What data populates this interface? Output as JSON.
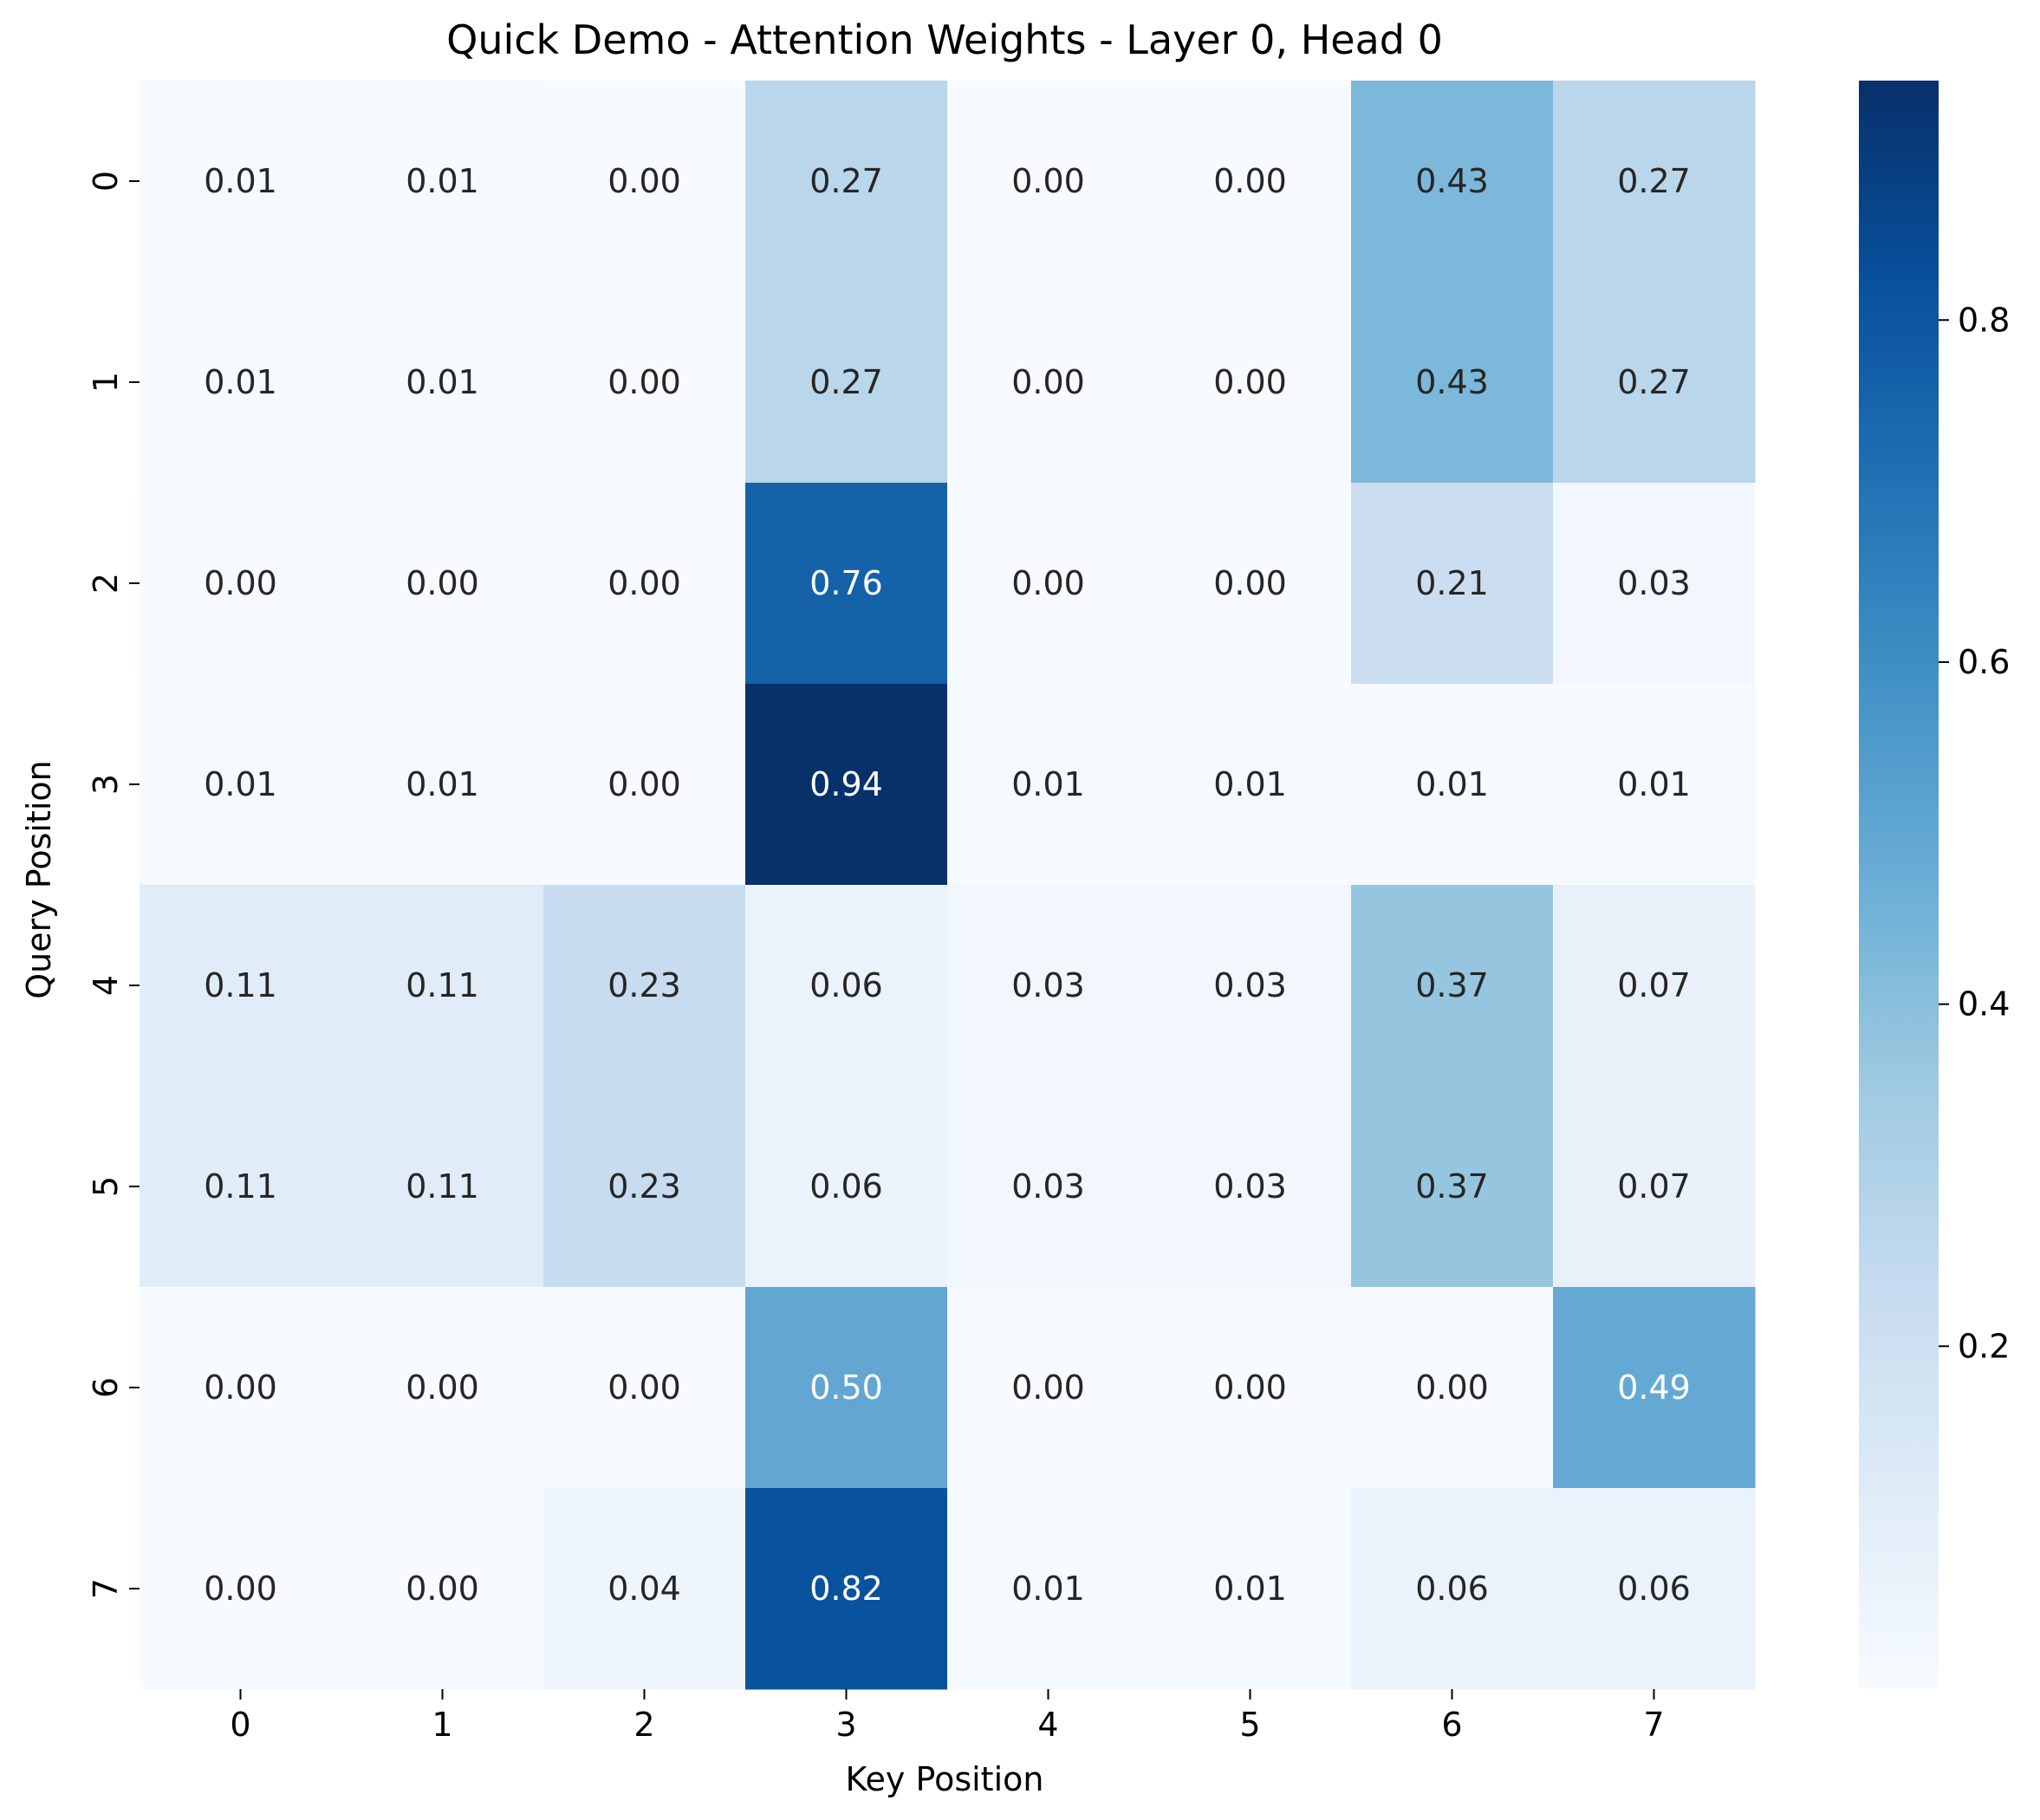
{
  "chart_data": {
    "type": "heatmap",
    "title": "Quick Demo - Attention Weights - Layer 0, Head 0",
    "xlabel": "Key Position",
    "ylabel": "Query Position",
    "x_categories": [
      "0",
      "1",
      "2",
      "3",
      "4",
      "5",
      "6",
      "7"
    ],
    "y_categories": [
      "0",
      "1",
      "2",
      "3",
      "4",
      "5",
      "6",
      "7"
    ],
    "values": [
      [
        0.01,
        0.01,
        0.0,
        0.27,
        0.0,
        0.0,
        0.43,
        0.27
      ],
      [
        0.01,
        0.01,
        0.0,
        0.27,
        0.0,
        0.0,
        0.43,
        0.27
      ],
      [
        0.0,
        0.0,
        0.0,
        0.76,
        0.0,
        0.0,
        0.21,
        0.03
      ],
      [
        0.01,
        0.01,
        0.0,
        0.94,
        0.01,
        0.01,
        0.01,
        0.01
      ],
      [
        0.11,
        0.11,
        0.23,
        0.06,
        0.03,
        0.03,
        0.37,
        0.07
      ],
      [
        0.11,
        0.11,
        0.23,
        0.06,
        0.03,
        0.03,
        0.37,
        0.07
      ],
      [
        0.0,
        0.0,
        0.0,
        0.5,
        0.0,
        0.0,
        0.0,
        0.49
      ],
      [
        0.0,
        0.0,
        0.04,
        0.82,
        0.01,
        0.01,
        0.06,
        0.06
      ]
    ],
    "cell_labels": [
      [
        "0.01",
        "0.01",
        "0.00",
        "0.27",
        "0.00",
        "0.00",
        "0.43",
        "0.27"
      ],
      [
        "0.01",
        "0.01",
        "0.00",
        "0.27",
        "0.00",
        "0.00",
        "0.43",
        "0.27"
      ],
      [
        "0.00",
        "0.00",
        "0.00",
        "0.76",
        "0.00",
        "0.00",
        "0.21",
        "0.03"
      ],
      [
        "0.01",
        "0.01",
        "0.00",
        "0.94",
        "0.01",
        "0.01",
        "0.01",
        "0.01"
      ],
      [
        "0.11",
        "0.11",
        "0.23",
        "0.06",
        "0.03",
        "0.03",
        "0.37",
        "0.07"
      ],
      [
        "0.11",
        "0.11",
        "0.23",
        "0.06",
        "0.03",
        "0.03",
        "0.37",
        "0.07"
      ],
      [
        "0.00",
        "0.00",
        "0.00",
        "0.50",
        "0.00",
        "0.00",
        "0.00",
        "0.49"
      ],
      [
        "0.00",
        "0.00",
        "0.04",
        "0.82",
        "0.01",
        "0.01",
        "0.06",
        "0.06"
      ]
    ],
    "colormap": "Blues",
    "colorbar": {
      "range": [
        0.0,
        0.94
      ],
      "ticks": [
        0.2,
        0.4,
        0.6,
        0.8
      ],
      "tick_labels": [
        "0.2",
        "0.4",
        "0.6",
        "0.8"
      ]
    },
    "grid": false
  }
}
